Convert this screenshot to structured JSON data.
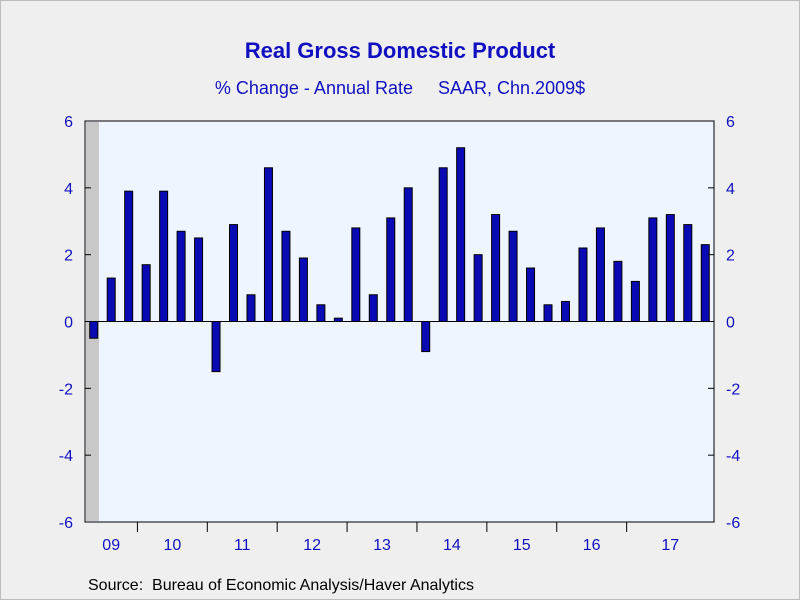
{
  "colors": {
    "page_background": "#efefef",
    "plot_background": "#eef5ff",
    "bar_fill": "#0a0ab4",
    "bar_stroke": "#000000",
    "text_blue": "#1010c0",
    "recession_shade": "#c8c8c8"
  },
  "footer": {
    "source": "Source:  Bureau of Economic Analysis/Haver Analytics"
  },
  "chart_data": {
    "type": "bar",
    "title": "Real Gross Domestic Product",
    "subtitle": "% Change - Annual Rate     SAAR, Chn.2009$",
    "ylim": [
      -6,
      6
    ],
    "yticks": [
      -6,
      -4,
      -2,
      0,
      2,
      4,
      6
    ],
    "ytick_labels": [
      "-6",
      "-4",
      "-2",
      "0",
      "2",
      "4",
      "6"
    ],
    "y_axis_both_sides": true,
    "grid": false,
    "legend": "none",
    "year_labels": [
      "09",
      "10",
      "11",
      "12",
      "13",
      "14",
      "15",
      "16",
      "17"
    ],
    "categories": [
      "2009Q2",
      "2009Q3",
      "2009Q4",
      "2010Q1",
      "2010Q2",
      "2010Q3",
      "2010Q4",
      "2011Q1",
      "2011Q2",
      "2011Q3",
      "2011Q4",
      "2012Q1",
      "2012Q2",
      "2012Q3",
      "2012Q4",
      "2013Q1",
      "2013Q2",
      "2013Q3",
      "2013Q4",
      "2014Q1",
      "2014Q2",
      "2014Q3",
      "2014Q4",
      "2015Q1",
      "2015Q2",
      "2015Q3",
      "2015Q4",
      "2016Q1",
      "2016Q2",
      "2016Q3",
      "2016Q4",
      "2017Q1",
      "2017Q2",
      "2017Q3",
      "2017Q4"
    ],
    "values": [
      -0.5,
      1.3,
      3.9,
      1.7,
      3.9,
      2.7,
      2.5,
      -1.5,
      2.9,
      0.8,
      4.6,
      2.7,
      1.9,
      0.5,
      0.1,
      2.8,
      0.8,
      3.1,
      4.0,
      -0.9,
      4.6,
      5.2,
      2.0,
      3.2,
      2.7,
      1.6,
      0.5,
      0.6,
      2.2,
      2.8,
      1.8,
      1.2,
      3.1,
      3.2,
      2.9
    ],
    "last_partial_value": 2.3,
    "recession_shading": {
      "start": "2009Q2",
      "end": "2009Q2"
    }
  }
}
